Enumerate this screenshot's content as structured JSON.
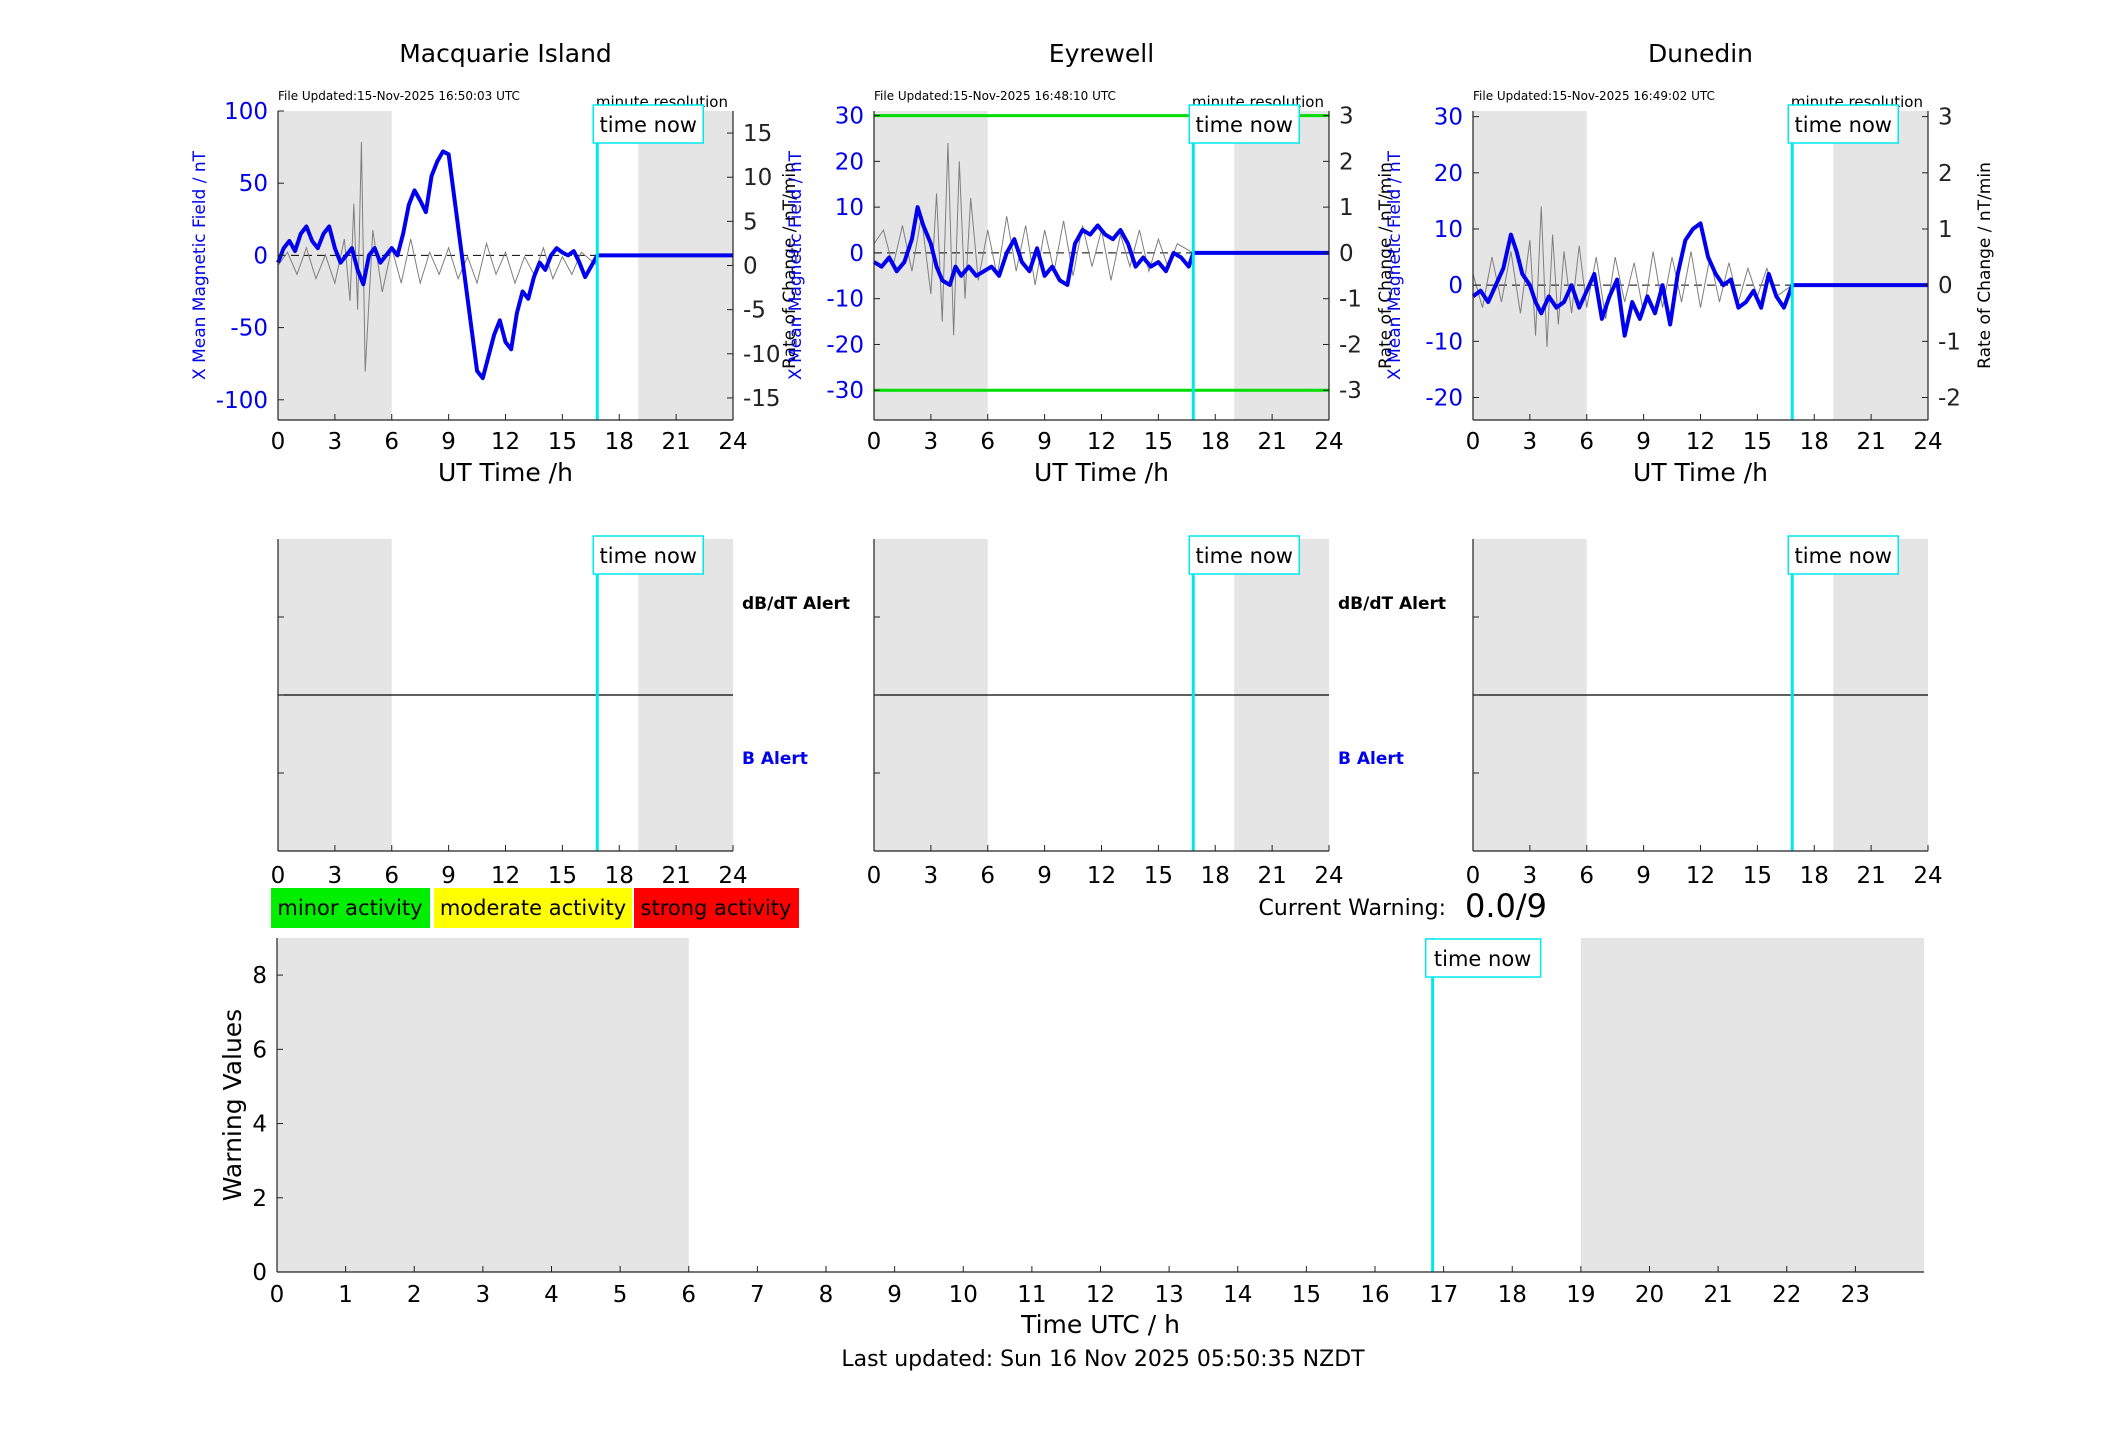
{
  "footer": "Last updated: Sun 16 Nov 2025 05:50:35 NZDT",
  "colors": {
    "night_shade": "#e5e5e5",
    "b_trace": "#0000ee",
    "rate_trace": "#7f7f7f",
    "time_now": "#00e8ee",
    "threshold": "#00dd00",
    "minor": "#00ee00",
    "moderate": "#ffff00",
    "strong": "#ff0000"
  },
  "legend": {
    "minor": "minor activity",
    "moderate": "moderate activity",
    "strong": "strong activity"
  },
  "current_warning": {
    "label": "Current Warning:",
    "value": "0.0/9"
  },
  "alert_labels": {
    "dbdt": "dB/dT Alert",
    "b": "B Alert"
  },
  "time_now_label": "time now",
  "chart_data": [
    {
      "type": "line",
      "title": "Macquarie Island",
      "file_updated": "File Updated:15-Nov-2025 16:50:03 UTC",
      "resolution": "minute resolution",
      "xlabel": "UT Time /h",
      "ylabel_left": "X Mean Magnetic Field / nT",
      "ylabel_right": "Rate of Change / nT/min",
      "xlim": [
        0,
        24
      ],
      "xticks": [
        0,
        3,
        6,
        9,
        12,
        15,
        18,
        21,
        24
      ],
      "ylim_left": [
        -114,
        100
      ],
      "yticks_left": [
        -100,
        -50,
        0,
        50,
        100
      ],
      "ylim_right": [
        -17.5,
        17.5
      ],
      "yticks_right": [
        -15,
        -10,
        -5,
        0,
        5,
        10,
        15
      ],
      "night_shading_hours": [
        [
          0,
          6
        ],
        [
          19,
          24
        ]
      ],
      "time_now": 16.84,
      "series": [
        {
          "role": "b_field",
          "x": [
            0,
            0.3,
            0.6,
            0.9,
            1.2,
            1.5,
            1.8,
            2.1,
            2.4,
            2.7,
            3.0,
            3.3,
            3.6,
            3.9,
            4.2,
            4.5,
            4.8,
            5.1,
            5.4,
            5.7,
            6.0,
            6.3,
            6.6,
            6.9,
            7.2,
            7.5,
            7.8,
            8.1,
            8.4,
            8.7,
            9.0,
            9.3,
            9.6,
            9.9,
            10.2,
            10.5,
            10.8,
            11.1,
            11.4,
            11.7,
            12.0,
            12.3,
            12.6,
            12.9,
            13.2,
            13.5,
            13.8,
            14.1,
            14.4,
            14.7,
            15.0,
            15.3,
            15.6,
            15.9,
            16.2,
            16.5,
            16.84,
            17,
            18,
            19,
            20,
            21,
            22,
            23,
            24
          ],
          "values": [
            -5,
            5,
            10,
            3,
            15,
            20,
            10,
            5,
            15,
            20,
            5,
            -5,
            0,
            5,
            -10,
            -20,
            0,
            5,
            -5,
            0,
            5,
            0,
            15,
            35,
            45,
            38,
            30,
            55,
            65,
            72,
            70,
            40,
            10,
            -20,
            -50,
            -80,
            -85,
            -70,
            -55,
            -45,
            -60,
            -65,
            -40,
            -25,
            -30,
            -15,
            -5,
            -10,
            0,
            5,
            2,
            0,
            3,
            -5,
            -15,
            -8,
            0,
            0,
            0,
            0,
            0,
            0,
            0,
            0,
            0
          ]
        },
        {
          "role": "rate_of_change",
          "x": [
            0,
            0.5,
            1,
            1.5,
            2,
            2.5,
            3,
            3.5,
            3.8,
            4.0,
            4.2,
            4.4,
            4.6,
            5,
            5.5,
            6,
            6.5,
            7,
            7.5,
            8,
            8.5,
            9,
            9.5,
            10,
            10.5,
            11,
            11.5,
            12,
            12.5,
            13,
            13.5,
            14,
            14.5,
            15,
            15.5,
            16,
            16.84
          ],
          "values": [
            0,
            1.5,
            -1,
            2,
            -1.5,
            1.2,
            -2,
            3,
            -4,
            7,
            -5,
            14,
            -12,
            4,
            -3,
            2,
            -2,
            3,
            -2,
            1.5,
            -1,
            2,
            -1.5,
            1,
            -2,
            2.5,
            -1,
            1.5,
            -2,
            1,
            -1,
            2,
            -1.5,
            1,
            -1,
            1.5,
            0
          ]
        }
      ],
      "zero_line": true
    },
    {
      "type": "line",
      "title": "Eyrewell",
      "file_updated": "File Updated:15-Nov-2025 16:48:10 UTC",
      "resolution": "minute resolution",
      "xlabel": "UT Time /h",
      "ylabel_left": "X Mean Magnetic Field / nT",
      "ylabel_right": "Rate of Change / nT/min",
      "xlim": [
        0,
        24
      ],
      "xticks": [
        0,
        3,
        6,
        9,
        12,
        15,
        18,
        21,
        24
      ],
      "ylim_left": [
        -36.5,
        31
      ],
      "yticks_left": [
        -30,
        -20,
        -10,
        0,
        10,
        20,
        30
      ],
      "ylim_right": [
        -3.65,
        3.1
      ],
      "yticks_right": [
        -3,
        -2,
        -1,
        0,
        1,
        2,
        3
      ],
      "thresholds_right": [
        3,
        -3
      ],
      "night_shading_hours": [
        [
          0,
          6
        ],
        [
          19,
          24
        ]
      ],
      "time_now": 16.84,
      "series": [
        {
          "role": "b_field",
          "x": [
            0,
            0.4,
            0.8,
            1.2,
            1.6,
            2.0,
            2.3,
            2.6,
            3.0,
            3.3,
            3.6,
            4.0,
            4.3,
            4.6,
            5.0,
            5.4,
            5.8,
            6.2,
            6.6,
            7.0,
            7.4,
            7.8,
            8.2,
            8.6,
            9.0,
            9.4,
            9.8,
            10.2,
            10.6,
            11.0,
            11.4,
            11.8,
            12.2,
            12.6,
            13.0,
            13.4,
            13.8,
            14.2,
            14.6,
            15.0,
            15.4,
            15.8,
            16.2,
            16.6,
            16.84,
            17,
            18,
            19,
            20,
            21,
            22,
            23,
            24
          ],
          "values": [
            -2,
            -3,
            -1,
            -4,
            -2,
            3,
            10,
            6,
            2,
            -3,
            -6,
            -7,
            -3,
            -5,
            -3,
            -5,
            -4,
            -3,
            -5,
            0,
            3,
            -2,
            -4,
            1,
            -5,
            -3,
            -6,
            -7,
            2,
            5,
            4,
            6,
            4,
            3,
            5,
            2,
            -3,
            -1,
            -3,
            -2,
            -4,
            0,
            -1,
            -3,
            0,
            0,
            0,
            0,
            0,
            0,
            0,
            0,
            0
          ]
        },
        {
          "role": "rate_of_change",
          "x": [
            0,
            0.5,
            1,
            1.5,
            2,
            2.5,
            3,
            3.3,
            3.6,
            3.9,
            4.2,
            4.5,
            4.8,
            5.1,
            5.5,
            6,
            6.5,
            7,
            7.5,
            8,
            8.5,
            9,
            9.5,
            10,
            10.5,
            11,
            11.5,
            12,
            12.5,
            13,
            13.5,
            14,
            14.5,
            15,
            15.5,
            16,
            16.84
          ],
          "values": [
            0.2,
            0.5,
            -0.3,
            0.6,
            -0.4,
            0.8,
            -0.9,
            1.3,
            -1.5,
            2.4,
            -1.8,
            2.0,
            -1.0,
            1.2,
            -0.6,
            0.5,
            -0.5,
            0.8,
            -0.4,
            0.6,
            -0.7,
            0.5,
            -0.4,
            0.7,
            -0.5,
            0.6,
            -0.3,
            0.5,
            -0.6,
            0.4,
            -0.3,
            0.5,
            -0.4,
            0.3,
            -0.3,
            0.2,
            0
          ]
        }
      ],
      "zero_line": true
    },
    {
      "type": "line",
      "title": "Dunedin",
      "file_updated": "File Updated:15-Nov-2025 16:49:02 UTC",
      "resolution": "minute resolution",
      "xlabel": "UT Time /h",
      "ylabel_left": "X Mean Magnetic Field / nT",
      "ylabel_right": "Rate of Change / nT/min",
      "xlim": [
        0,
        24
      ],
      "xticks": [
        0,
        3,
        6,
        9,
        12,
        15,
        18,
        21,
        24
      ],
      "ylim_left": [
        -24,
        31
      ],
      "yticks_left": [
        -20,
        -10,
        0,
        10,
        20,
        30
      ],
      "ylim_right": [
        -2.4,
        3.1
      ],
      "yticks_right": [
        -2,
        -1,
        0,
        1,
        2,
        3
      ],
      "night_shading_hours": [
        [
          0,
          6
        ],
        [
          19,
          24
        ]
      ],
      "time_now": 16.84,
      "series": [
        {
          "role": "b_field",
          "x": [
            0,
            0.4,
            0.8,
            1.2,
            1.6,
            2.0,
            2.3,
            2.6,
            3.0,
            3.3,
            3.6,
            4.0,
            4.4,
            4.8,
            5.2,
            5.6,
            6.0,
            6.4,
            6.8,
            7.2,
            7.6,
            8.0,
            8.4,
            8.8,
            9.2,
            9.6,
            10.0,
            10.4,
            10.8,
            11.2,
            11.6,
            12.0,
            12.4,
            12.8,
            13.2,
            13.6,
            14.0,
            14.4,
            14.8,
            15.2,
            15.6,
            16.0,
            16.4,
            16.84,
            17,
            18,
            19,
            20,
            21,
            22,
            23,
            24
          ],
          "values": [
            -2,
            -1,
            -3,
            0,
            3,
            9,
            6,
            2,
            0,
            -3,
            -5,
            -2,
            -4,
            -3,
            0,
            -4,
            -1,
            2,
            -6,
            -2,
            1,
            -9,
            -3,
            -6,
            -2,
            -5,
            0,
            -7,
            2,
            8,
            10,
            11,
            5,
            2,
            0,
            1,
            -4,
            -3,
            -1,
            -4,
            2,
            -2,
            -4,
            0,
            0,
            0,
            0,
            0,
            0,
            0,
            0,
            0
          ]
        },
        {
          "role": "rate_of_change",
          "x": [
            0,
            0.5,
            1,
            1.5,
            2,
            2.5,
            3,
            3.3,
            3.6,
            3.9,
            4.2,
            4.5,
            4.8,
            5.2,
            5.6,
            6,
            6.5,
            7,
            7.5,
            8,
            8.5,
            9,
            9.5,
            10,
            10.5,
            11,
            11.5,
            12,
            12.5,
            13,
            13.5,
            14,
            14.5,
            15,
            15.5,
            16,
            16.84
          ],
          "values": [
            0.2,
            -0.4,
            0.5,
            -0.3,
            0.6,
            -0.5,
            0.8,
            -0.9,
            1.4,
            -1.1,
            0.9,
            -0.7,
            0.6,
            -0.5,
            0.7,
            -0.4,
            0.5,
            -0.6,
            0.5,
            -0.3,
            0.4,
            -0.5,
            0.6,
            -0.4,
            0.5,
            -0.3,
            0.6,
            -0.4,
            0.5,
            -0.3,
            0.4,
            -0.3,
            0.3,
            -0.2,
            0.3,
            -0.2,
            0
          ]
        }
      ],
      "zero_line": true
    },
    {
      "type": "line",
      "title": "",
      "xlabel": "Time UTC / h",
      "ylabel": "Warning Values",
      "xlim": [
        0,
        24
      ],
      "xticks": [
        0,
        1,
        2,
        3,
        4,
        5,
        6,
        7,
        8,
        9,
        10,
        11,
        12,
        13,
        14,
        15,
        16,
        17,
        18,
        19,
        20,
        21,
        22,
        23
      ],
      "ylim": [
        0,
        9
      ],
      "yticks": [
        0,
        2,
        4,
        6,
        8
      ],
      "night_shading_hours": [
        [
          0,
          6
        ],
        [
          19,
          24
        ]
      ],
      "time_now": 16.84,
      "series": []
    }
  ]
}
